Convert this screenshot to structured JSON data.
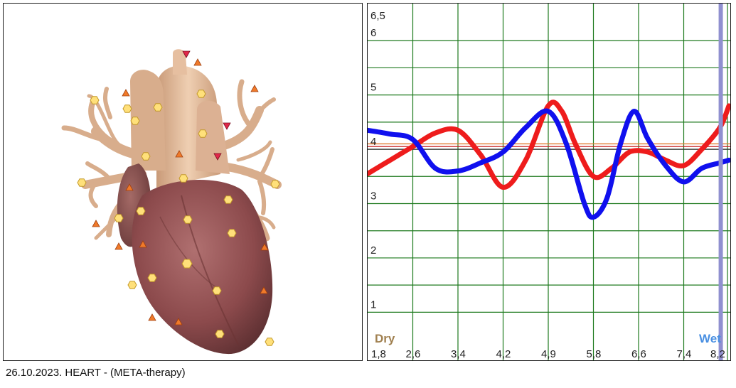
{
  "caption": "26.10.2023. HEART - (META-therapy)",
  "heart_view": {
    "subject": "heart-3d-model",
    "colors": {
      "heart_body": "#8c4a4c",
      "vessels": "#dcb08f",
      "marker_yellow": "#ffe07a",
      "marker_orange": "#f07a2a",
      "marker_red": "#e0284a"
    }
  },
  "chart_data": {
    "type": "line",
    "x_ticks": [
      "1,8",
      "2,6",
      "3,4",
      "4,2",
      "4,9",
      "5,8",
      "6,6",
      "7,4",
      "8,2"
    ],
    "y_ticks": [
      "1",
      "2",
      "3",
      "4",
      "5",
      "6",
      "6,5"
    ],
    "ylim": [
      0.9,
      6.5
    ],
    "xlim": [
      0,
      8
    ],
    "left_label": "Dry",
    "right_label": "Wet",
    "grid": true,
    "colors": {
      "grid": "#1e7a1e",
      "red": "#ee1c1c",
      "blue": "#1010ee",
      "marker_bar": "#9090d0",
      "ref_orange": "#e07a30",
      "ref_red": "#c82020",
      "dry": "#a08050",
      "wet": "#4a90e2"
    },
    "reference_lines": [
      4.1,
      4.05,
      4.0
    ],
    "marker_x": 7.82,
    "series": [
      {
        "color": "red",
        "points": [
          [
            0,
            3.55
          ],
          [
            0.5,
            3.8
          ],
          [
            1,
            4.05
          ],
          [
            1.5,
            4.3
          ],
          [
            2,
            4.35
          ],
          [
            2.5,
            3.9
          ],
          [
            3,
            3.3
          ],
          [
            3.5,
            3.8
          ],
          [
            4,
            4.8
          ],
          [
            4.3,
            4.7
          ],
          [
            4.6,
            4.1
          ],
          [
            5,
            3.5
          ],
          [
            5.4,
            3.65
          ],
          [
            5.8,
            3.95
          ],
          [
            6.2,
            3.95
          ],
          [
            6.6,
            3.8
          ],
          [
            7,
            3.7
          ],
          [
            7.4,
            4.0
          ],
          [
            7.8,
            4.4
          ],
          [
            8,
            4.8
          ]
        ]
      },
      {
        "color": "blue",
        "points": [
          [
            0,
            4.35
          ],
          [
            0.5,
            4.28
          ],
          [
            1,
            4.18
          ],
          [
            1.5,
            3.65
          ],
          [
            2,
            3.6
          ],
          [
            2.5,
            3.75
          ],
          [
            3,
            3.95
          ],
          [
            3.5,
            4.4
          ],
          [
            4,
            4.7
          ],
          [
            4.4,
            4.1
          ],
          [
            4.8,
            3.0
          ],
          [
            5,
            2.75
          ],
          [
            5.3,
            3.1
          ],
          [
            5.6,
            4.1
          ],
          [
            5.9,
            4.7
          ],
          [
            6.2,
            4.2
          ],
          [
            6.6,
            3.7
          ],
          [
            7,
            3.4
          ],
          [
            7.4,
            3.65
          ],
          [
            7.8,
            3.75
          ],
          [
            8,
            3.8
          ]
        ]
      }
    ]
  }
}
